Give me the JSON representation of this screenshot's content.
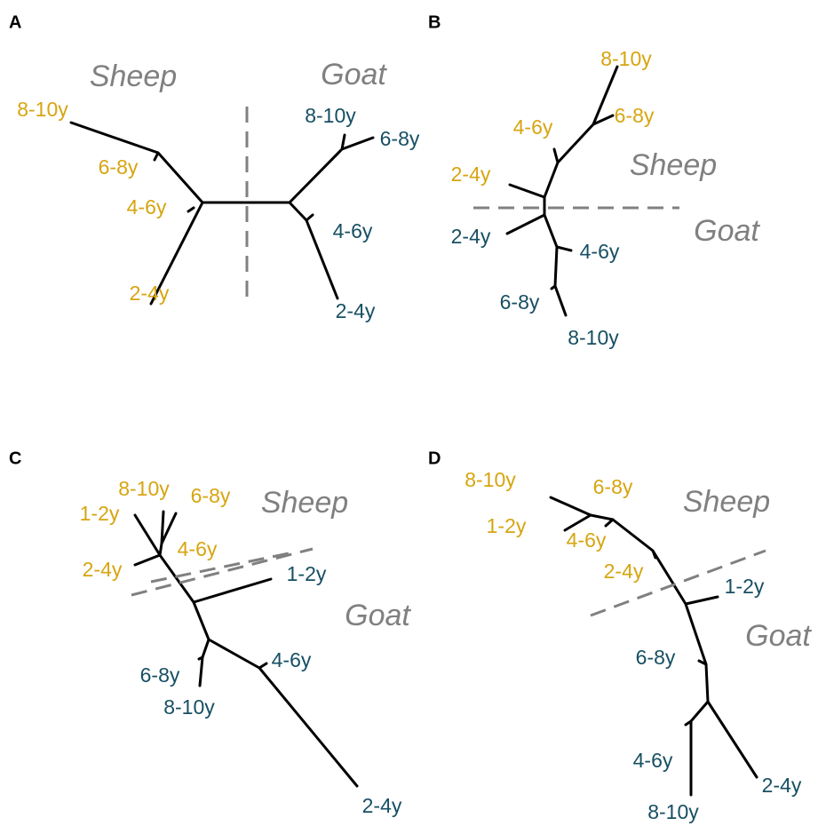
{
  "panels": [
    {
      "letter": "A",
      "sheep": "Sheep",
      "goat": "Goat",
      "sheep_leaves": [
        "8-10y",
        "6-8y",
        "4-6y",
        "2-4y"
      ],
      "goat_leaves": [
        "8-10y",
        "6-8y",
        "4-6y",
        "2-4y"
      ]
    },
    {
      "letter": "B",
      "sheep": "Sheep",
      "goat": "Goat",
      "sheep_leaves": [
        "8-10y",
        "6-8y",
        "4-6y",
        "2-4y"
      ],
      "goat_leaves": [
        "2-4y",
        "4-6y",
        "6-8y",
        "8-10y"
      ]
    },
    {
      "letter": "C",
      "sheep": "Sheep",
      "goat": "Goat",
      "sheep_leaves": [
        "8-10y",
        "6-8y",
        "1-2y",
        "4-6y",
        "2-4y"
      ],
      "goat_leaves": [
        "1-2y",
        "4-6y",
        "6-8y",
        "8-10y",
        "2-4y"
      ]
    },
    {
      "letter": "D",
      "sheep": "Sheep",
      "goat": "Goat",
      "sheep_leaves": [
        "8-10y",
        "6-8y",
        "1-2y",
        "4-6y",
        "2-4y"
      ],
      "goat_leaves": [
        "1-2y",
        "6-8y",
        "4-6y",
        "2-4y",
        "8-10y"
      ]
    }
  ]
}
